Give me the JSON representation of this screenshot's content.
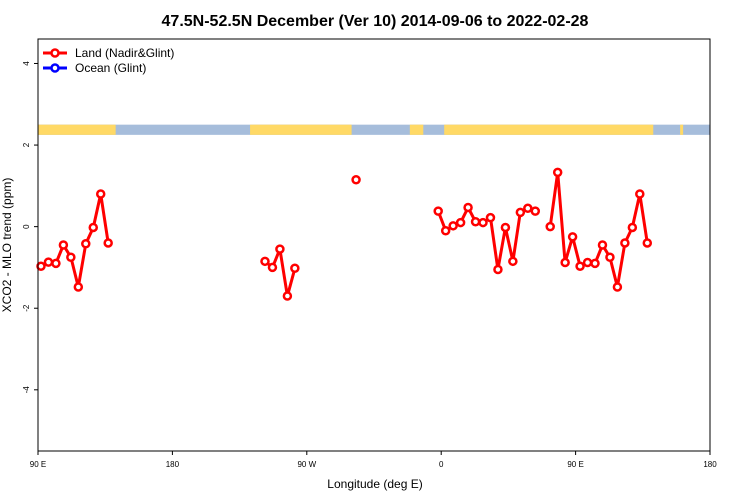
{
  "chart_data": {
    "type": "line",
    "title": "47.5N-52.5N December (Ver 10)   2014-09-06 to 2022-02-28",
    "xlabel": "Longitude (deg E)",
    "ylabel": "XCO2 - MLO trend (ppm)",
    "xlim": [
      90,
      540
    ],
    "ylim": [
      -5.5,
      4.6
    ],
    "x_ticks": [
      {
        "value": 90,
        "label": "90 E"
      },
      {
        "value": 180,
        "label": "180"
      },
      {
        "value": 270,
        "label": "90 W"
      },
      {
        "value": 360,
        "label": "0"
      },
      {
        "value": 450,
        "label": "90 E"
      },
      {
        "value": 540,
        "label": "180"
      }
    ],
    "y_ticks": [
      {
        "value": -4,
        "label": "-4"
      },
      {
        "value": -2,
        "label": "-2"
      },
      {
        "value": 0,
        "label": "0"
      },
      {
        "value": 2,
        "label": "2"
      },
      {
        "value": 4,
        "label": "4"
      }
    ],
    "legend": {
      "position": "top-left",
      "entries": [
        {
          "name": "Land (Nadir&Glint)",
          "color": "#ff0000"
        },
        {
          "name": "Ocean (Glint)",
          "color": "#0000ff"
        }
      ]
    },
    "land_sea_band": {
      "y_range": [
        2.25,
        2.5
      ],
      "land_color": "#ffd966",
      "ocean_color": "#a6bddb",
      "land_spans": [
        [
          90,
          142
        ],
        [
          232,
          300
        ],
        [
          339,
          348
        ],
        [
          362,
          502
        ],
        [
          520,
          522
        ]
      ]
    },
    "series": [
      {
        "name": "Land (Nadir&Glint)",
        "color": "#ff0000",
        "segments": [
          [
            {
              "x": 92,
              "y": -0.97
            },
            {
              "x": 97,
              "y": -0.87
            },
            {
              "x": 102,
              "y": -0.9
            },
            {
              "x": 107,
              "y": -0.45
            },
            {
              "x": 112,
              "y": -0.75
            },
            {
              "x": 117,
              "y": -1.48
            },
            {
              "x": 122,
              "y": -0.42
            },
            {
              "x": 127,
              "y": -0.02
            },
            {
              "x": 132,
              "y": 0.8
            },
            {
              "x": 137,
              "y": -0.4
            }
          ],
          [
            {
              "x": 242,
              "y": -0.85
            },
            {
              "x": 247,
              "y": -1.0
            },
            {
              "x": 252,
              "y": -0.55
            },
            {
              "x": 257,
              "y": -1.7
            },
            {
              "x": 262,
              "y": -1.02
            }
          ],
          [
            {
              "x": 303,
              "y": 1.15
            }
          ],
          [
            {
              "x": 358,
              "y": 0.38
            },
            {
              "x": 363,
              "y": -0.1
            },
            {
              "x": 368,
              "y": 0.02
            },
            {
              "x": 373,
              "y": 0.1
            },
            {
              "x": 378,
              "y": 0.47
            },
            {
              "x": 383,
              "y": 0.12
            },
            {
              "x": 388,
              "y": 0.1
            },
            {
              "x": 393,
              "y": 0.22
            },
            {
              "x": 398,
              "y": -1.05
            },
            {
              "x": 403,
              "y": -0.02
            },
            {
              "x": 408,
              "y": -0.85
            },
            {
              "x": 413,
              "y": 0.35
            },
            {
              "x": 418,
              "y": 0.45
            },
            {
              "x": 423,
              "y": 0.38
            }
          ],
          [
            {
              "x": 433,
              "y": 0.0
            },
            {
              "x": 438,
              "y": 1.33
            },
            {
              "x": 443,
              "y": -0.88
            },
            {
              "x": 448,
              "y": -0.25
            },
            {
              "x": 453,
              "y": -0.97
            },
            {
              "x": 458,
              "y": -0.88
            },
            {
              "x": 463,
              "y": -0.9
            },
            {
              "x": 468,
              "y": -0.45
            },
            {
              "x": 473,
              "y": -0.75
            },
            {
              "x": 478,
              "y": -1.48
            },
            {
              "x": 483,
              "y": -0.4
            },
            {
              "x": 488,
              "y": -0.02
            },
            {
              "x": 493,
              "y": 0.8
            },
            {
              "x": 498,
              "y": -0.4
            }
          ]
        ]
      },
      {
        "name": "Ocean (Glint)",
        "color": "#0000ff",
        "segments": []
      }
    ]
  }
}
